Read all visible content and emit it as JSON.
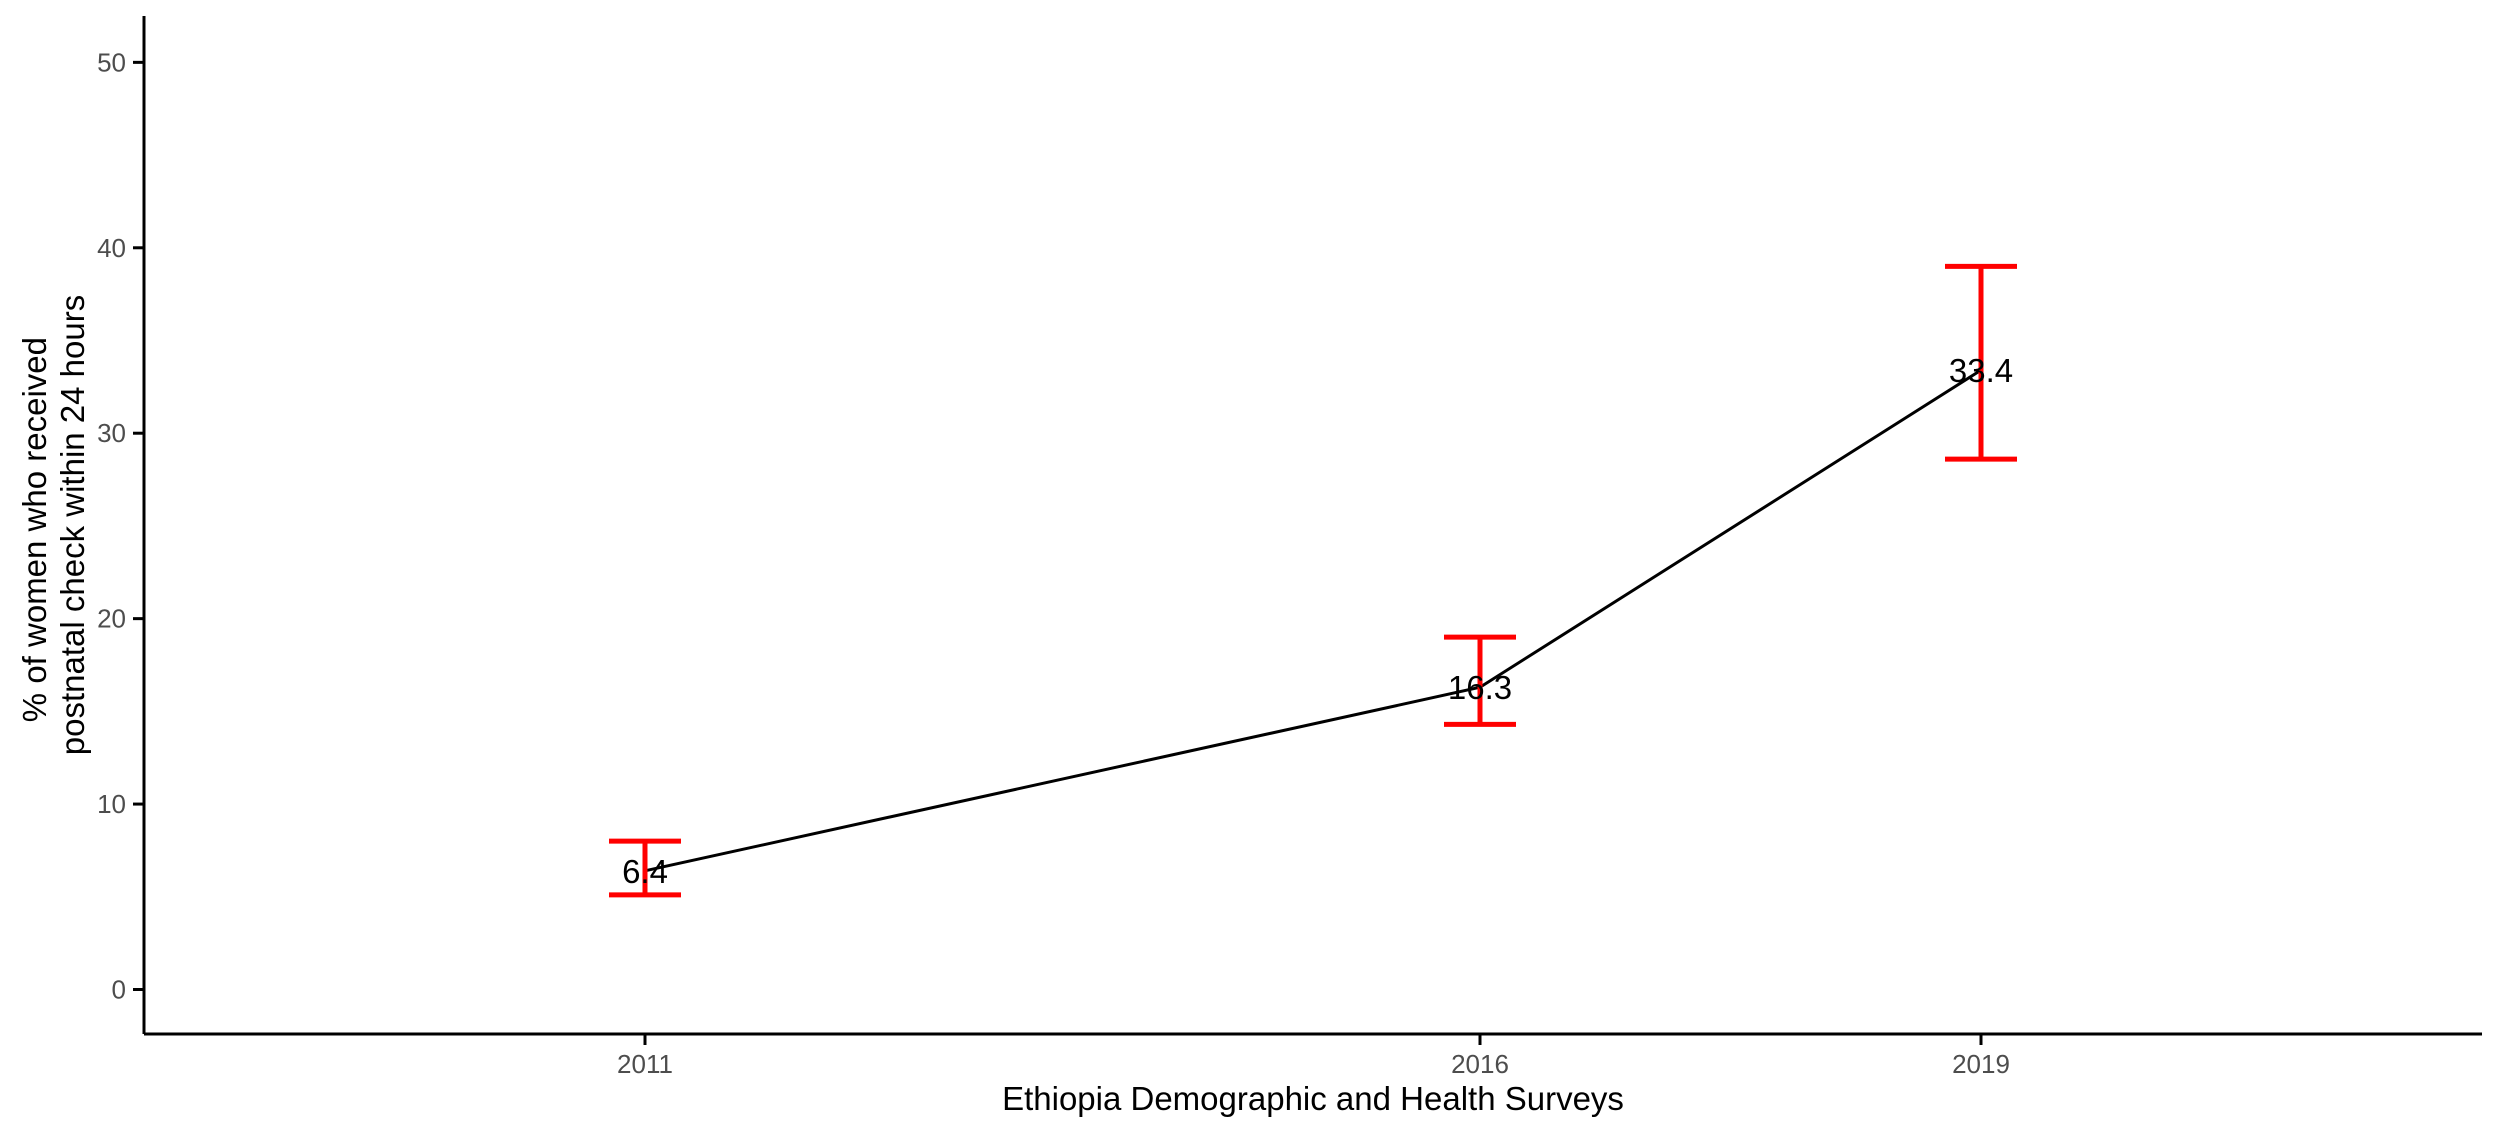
{
  "chart_data": {
    "type": "line",
    "title": "",
    "xlabel": "Ethiopia Demographic and Health Surveys",
    "ylabel": [
      "% of women who received",
      "postnatal check within 24 hours"
    ],
    "categories": [
      "2011",
      "2016",
      "2019"
    ],
    "x": [
      2011,
      2016,
      2019
    ],
    "xlim": [
      2008.0,
      2022.0
    ],
    "series": [
      {
        "values": [
          6.4,
          16.3,
          33.4
        ],
        "labels": [
          "6.4",
          "16.3",
          "33.4"
        ],
        "error_low": [
          5.1,
          14.3,
          28.6
        ],
        "error_high": [
          8.0,
          19.0,
          39.0
        ]
      }
    ],
    "ylim": [
      -2.4,
      52.5
    ],
    "yticks": [
      0,
      10,
      20,
      30,
      40,
      50
    ],
    "ytick_labels": [
      "0",
      "10",
      "20",
      "30",
      "40",
      "50"
    ],
    "grid": false,
    "legend": "none",
    "colors": {
      "line": "#000000",
      "error_bar": "#ff0000",
      "axis": "#000000",
      "tick_label": "#4d4d4d"
    }
  }
}
